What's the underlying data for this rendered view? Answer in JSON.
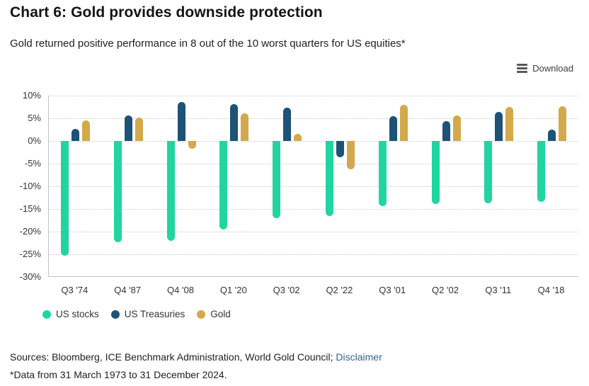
{
  "header": {
    "title": "Chart 6: Gold provides downside protection",
    "subtitle": "Gold returned positive performance in 8 out of the 10 worst quarters for US equities*"
  },
  "toolbar": {
    "download_label": "Download",
    "download_icon": "hamburger-icon"
  },
  "chart_data": {
    "type": "bar",
    "title": "",
    "categories": [
      "Q3 '74",
      "Q4 '87",
      "Q4 '08",
      "Q1 '20",
      "Q3 '02",
      "Q2 '22",
      "Q3 '01",
      "Q2 '02",
      "Q3 '11",
      "Q4 '18"
    ],
    "series": [
      {
        "name": "US stocks",
        "color": "#20d5a0",
        "values": [
          -25.3,
          -22.4,
          -22.0,
          -19.6,
          -17.1,
          -16.5,
          -14.3,
          -13.9,
          -13.8,
          -13.4
        ]
      },
      {
        "name": "US Treasuries",
        "color": "#1e5276",
        "values": [
          2.6,
          5.7,
          8.6,
          8.1,
          7.4,
          -3.6,
          5.5,
          4.3,
          6.4,
          2.5
        ]
      },
      {
        "name": "Gold",
        "color": "#d3a94c",
        "values": [
          4.6,
          5.2,
          -1.7,
          6.1,
          1.5,
          -6.3,
          8.0,
          5.6,
          7.5,
          7.7
        ]
      }
    ],
    "xlabel": "",
    "ylabel": "",
    "ylim": [
      -30,
      10
    ],
    "y_ticks": [
      10,
      5,
      0,
      -5,
      -10,
      -15,
      -20,
      -25,
      -30
    ],
    "y_tick_suffix": "%",
    "grid": "horizontal-dotted",
    "legend_position": "bottom-left"
  },
  "footer": {
    "sources_text": "Sources: Bloomberg, ICE Benchmark Administration, World Gold Council;",
    "disclaimer_label": "Disclaimer",
    "disclaimer_color": "#336589",
    "footnote": "*Data from 31 March 1973 to 31 December 2024."
  }
}
